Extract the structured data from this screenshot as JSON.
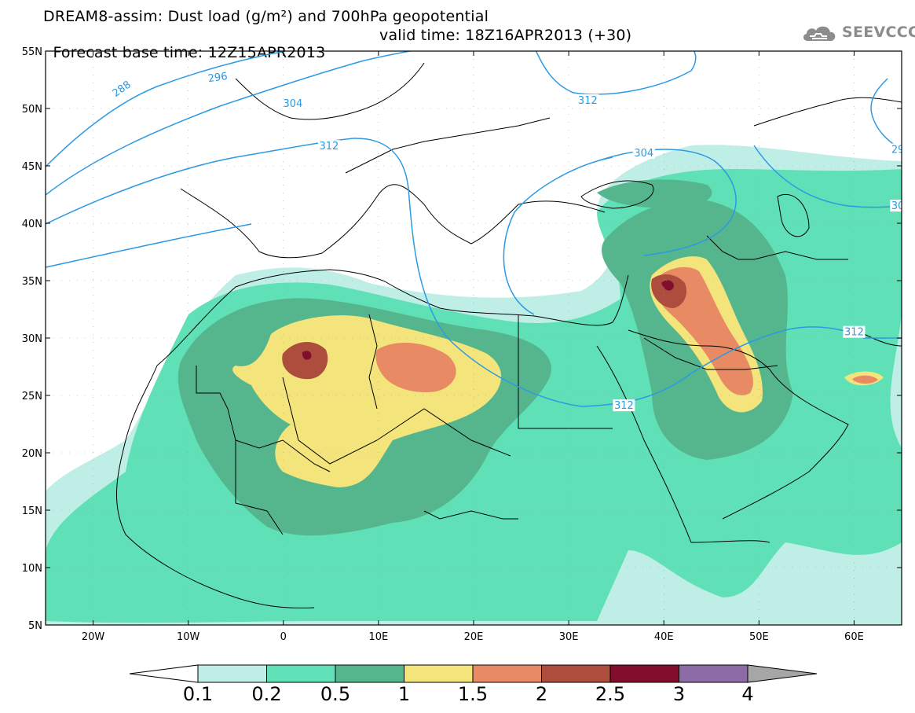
{
  "title": {
    "line1": "DREAM8-assim: Dust load (g/m²) and 700hPa geopotential",
    "base_time": "Forecast base time: 12Z15APR2013",
    "valid_time": "valid time: 18Z16APR2013 (+30)"
  },
  "logo": {
    "text": "SEEVCCC",
    "icon": "cloud-icon"
  },
  "map": {
    "lon_range": [
      -25,
      65
    ],
    "lat_range": [
      5,
      55
    ],
    "x_ticks": [
      {
        "lon": -20,
        "label": "20W"
      },
      {
        "lon": -10,
        "label": "10W"
      },
      {
        "lon": 0,
        "label": "0"
      },
      {
        "lon": 10,
        "label": "10E"
      },
      {
        "lon": 20,
        "label": "20E"
      },
      {
        "lon": 30,
        "label": "30E"
      },
      {
        "lon": 40,
        "label": "40E"
      },
      {
        "lon": 50,
        "label": "50E"
      },
      {
        "lon": 60,
        "label": "60E"
      }
    ],
    "y_ticks": [
      {
        "lat": 55,
        "label": "55N"
      },
      {
        "lat": 50,
        "label": "50N"
      },
      {
        "lat": 45,
        "label": "45N"
      },
      {
        "lat": 40,
        "label": "40N"
      },
      {
        "lat": 35,
        "label": "35N"
      },
      {
        "lat": 30,
        "label": "30N"
      },
      {
        "lat": 25,
        "label": "25N"
      },
      {
        "lat": 20,
        "label": "20N"
      },
      {
        "lat": 15,
        "label": "15N"
      },
      {
        "lat": 10,
        "label": "10N"
      },
      {
        "lat": 5,
        "label": "5N"
      }
    ],
    "contour_labels": [
      {
        "text": "288",
        "lon": -17,
        "lat": 51.7,
        "angle": -35
      },
      {
        "text": "296",
        "lon": -6.9,
        "lat": 52.7,
        "angle": -8
      },
      {
        "text": "304",
        "lon": 1,
        "lat": 50.4,
        "angle": 0
      },
      {
        "text": "312",
        "lon": 4.8,
        "lat": 46.7,
        "angle": 0
      },
      {
        "text": "304",
        "lon": 37.9,
        "lat": 46.1,
        "angle": 0
      },
      {
        "text": "312",
        "lon": 32,
        "lat": 50.7,
        "angle": 0
      },
      {
        "text": "29",
        "lon": 64.6,
        "lat": 46.4,
        "angle": 0
      },
      {
        "text": "30",
        "lon": 64.6,
        "lat": 41.5,
        "angle": 0
      },
      {
        "text": "312",
        "lon": 60,
        "lat": 30.5,
        "angle": 0
      },
      {
        "text": "312",
        "lon": 35.8,
        "lat": 24.1,
        "angle": 0
      }
    ],
    "colors": {
      "frame": "#000000",
      "contour": "#2b9ae3",
      "border": "#000000"
    }
  },
  "colorbar": {
    "bins": [
      {
        "color": "#bfeee6"
      },
      {
        "color": "#60e0b6"
      },
      {
        "color": "#55b68e"
      },
      {
        "color": "#f3e57c"
      },
      {
        "color": "#e88b65"
      },
      {
        "color": "#ad4d3d"
      },
      {
        "color": "#820d2c"
      },
      {
        "color": "#8d6ba6"
      }
    ],
    "under_color": "#ffffff",
    "over_color": "#a6a6a6",
    "labels": [
      "0.1",
      "0.2",
      "0.5",
      "1",
      "1.5",
      "2",
      "2.5",
      "3",
      "4"
    ]
  }
}
